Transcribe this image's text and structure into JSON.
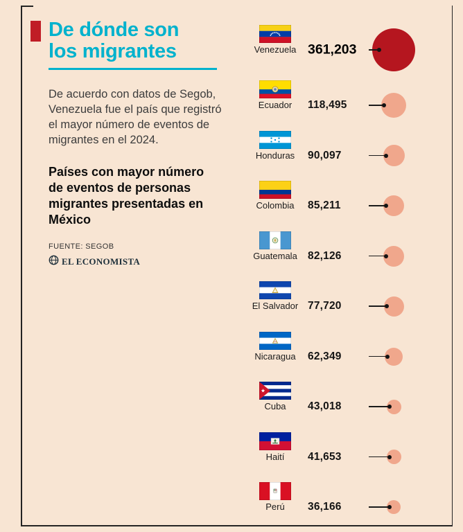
{
  "header": {
    "title": "De dónde son\nlos migrantes",
    "accent_color": "#c01d26",
    "title_color": "#00b2cd"
  },
  "intro": {
    "text": "De acuerdo con datos de Segob, Venezuela fue el país que registró el mayor número de eventos de migrantes en el 2024."
  },
  "subtitle": {
    "text": "Países con mayor número de eventos de personas migrantes presentadas en México"
  },
  "source": {
    "label": "FUENTE: SEGOB",
    "brand": "EL ECONOMISTA"
  },
  "chart_data": {
    "type": "scatter",
    "variant": "proportional-area-circle-ranking",
    "title": "Países con mayor número de eventos de personas migrantes presentadas en México",
    "categories": [
      "Venezuela",
      "Ecuador",
      "Honduras",
      "Colombia",
      "Guatemala",
      "El Salvador",
      "Nicaragua",
      "Cuba",
      "Haití",
      "Perú"
    ],
    "values": [
      361203,
      118495,
      90097,
      85211,
      82126,
      77720,
      62349,
      43018,
      41653,
      36166
    ],
    "value_labels": [
      "361,203",
      "118,495",
      "90,097",
      "85,211",
      "82,126",
      "77,720",
      "62,349",
      "43,018",
      "41,653",
      "36,166"
    ],
    "flags": [
      "venezuela-flag",
      "ecuador-flag",
      "honduras-flag",
      "colombia-flag",
      "guatemala-flag",
      "el-salvador-flag",
      "nicaragua-flag",
      "cuba-flag",
      "haiti-flag",
      "peru-flag"
    ],
    "highlight_index": 0,
    "legend": "none",
    "grid": false,
    "colors": {
      "highlight_circle": "#b5161f",
      "circle": "#f0a78c",
      "leader_line": "#1a1a1a",
      "background": "#f8e5d3"
    }
  }
}
